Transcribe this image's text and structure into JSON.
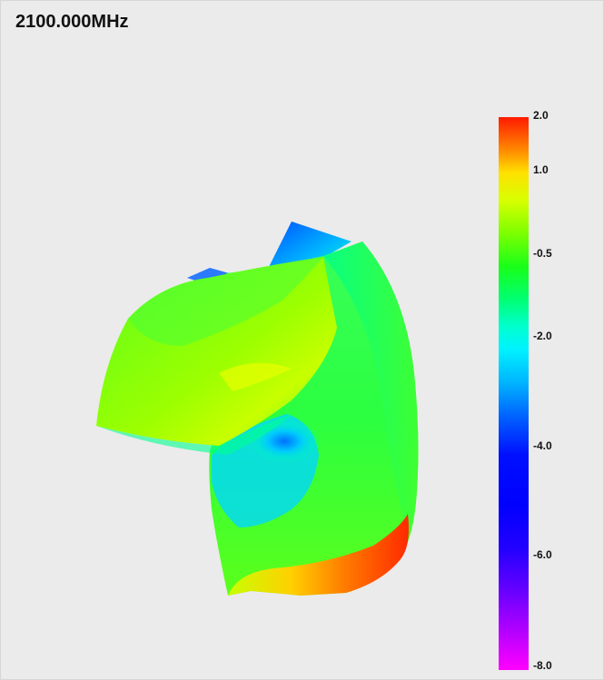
{
  "header": {
    "frequency_label": "2100.000MHz"
  },
  "pattern": {
    "description_colors": {
      "max": "#ff2a00",
      "high": "#ffd000",
      "mid": "#40ff20",
      "low": "#00ffff",
      "deep": "#0040ff"
    }
  },
  "colorbar": {
    "ticks": [
      "2.0",
      "1.0",
      "-0.5",
      "-2.0",
      "-4.0",
      "-6.0",
      "-8.0"
    ]
  }
}
